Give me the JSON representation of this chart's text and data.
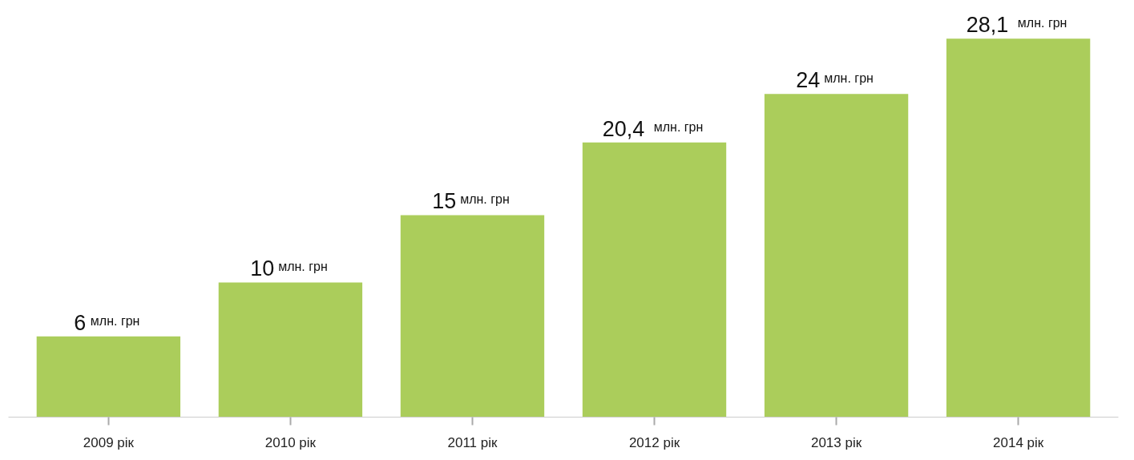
{
  "chart_data": {
    "type": "bar",
    "categories": [
      "2009 рік",
      "2010 рік",
      "2011 рік",
      "2012 рік",
      "2013 рік",
      "2014 рік"
    ],
    "values": [
      6,
      10,
      15,
      20.4,
      24,
      28.1
    ],
    "color": "#abcd5b",
    "value_labels": [
      "6 млн. грн",
      "10 млн. грн",
      "15 млн. грн",
      "20,4 млн. грн",
      "24 млн. грн",
      "28,1 млн. грн"
    ],
    "grid": false
  }
}
